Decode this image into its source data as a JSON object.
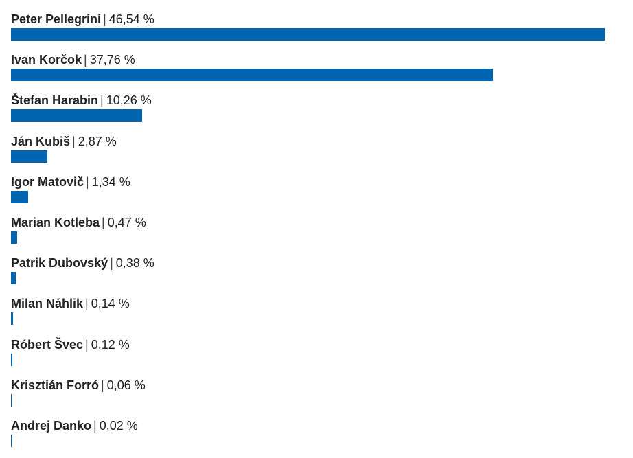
{
  "chart_data": {
    "type": "bar",
    "orientation": "horizontal",
    "title": "",
    "xlabel": "",
    "ylabel": "",
    "bar_color": "#0064b0",
    "unit": "%",
    "xlim": [
      0,
      46.54
    ],
    "grid": false,
    "legend": "none",
    "categories": [
      "Peter Pellegrini",
      "Ivan Korčok",
      "Štefan Harabin",
      "Ján Kubiš",
      "Igor Matovič",
      "Marian Kotleba",
      "Patrik Dubovský",
      "Milan Náhlik",
      "Róbert Švec",
      "Krisztián Forró",
      "Andrej Danko"
    ],
    "values": [
      46.54,
      37.76,
      10.26,
      2.87,
      1.34,
      0.47,
      0.38,
      0.14,
      0.12,
      0.06,
      0.02
    ],
    "value_labels": [
      "46,54 %",
      "37,76 %",
      "10,26 %",
      "2,87 %",
      "1,34 %",
      "0,47 %",
      "0,38 %",
      "0,14 %",
      "0,12 %",
      "0,06 %",
      "0,02 %"
    ],
    "separator": "|"
  }
}
